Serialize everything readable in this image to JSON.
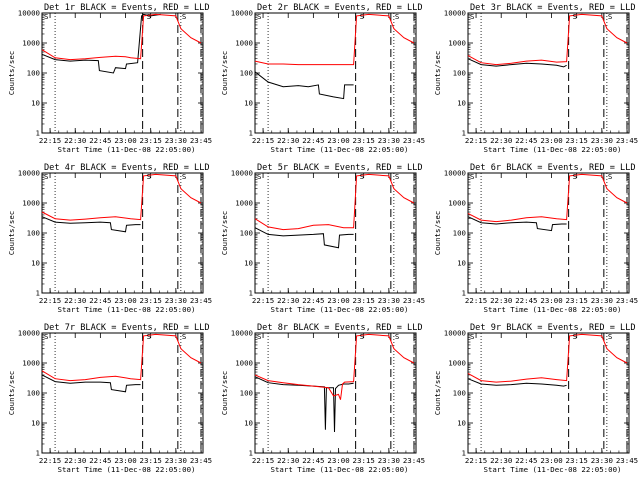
{
  "chart_data": [
    {
      "type": "line",
      "title": "Det 1r BLACK = Events, RED = LLD",
      "xlabel": "Start Time (11-Dec-08 22:05:00)",
      "ylabel": "Counts/sec",
      "yscale": "log",
      "ylim": [
        1,
        10000
      ],
      "xlim": [
        22.17,
        23.77
      ],
      "xticks": [
        "22:15",
        "22:30",
        "22:45",
        "23:00",
        "23:15",
        "23:30",
        "23:45"
      ],
      "yticks": [
        "1",
        "10",
        "100",
        "1000",
        "10000"
      ],
      "markers": [
        "S",
        "S",
        "S"
      ],
      "series": [
        {
          "name": "Events",
          "color": "#000000",
          "x": [
            22.17,
            22.3,
            22.45,
            22.6,
            22.73,
            22.74,
            22.88,
            22.9,
            23.0,
            23.01,
            23.12,
            23.16,
            23.18,
            23.25,
            23.35
          ],
          "y": [
            420,
            280,
            250,
            270,
            260,
            120,
            100,
            150,
            140,
            200,
            220,
            8000,
            9000,
            8000,
            9000
          ]
        },
        {
          "name": "LLD",
          "color": "#ff0000",
          "x": [
            22.17,
            22.3,
            22.45,
            22.6,
            22.75,
            22.9,
            23.0,
            23.05,
            23.15,
            23.18,
            23.3,
            23.5,
            23.55,
            23.65,
            23.75
          ],
          "y": [
            600,
            320,
            280,
            300,
            330,
            360,
            350,
            320,
            300,
            8000,
            9000,
            8000,
            3000,
            1500,
            1000
          ]
        }
      ],
      "vlines_dotted": [
        22.3,
        23.55
      ],
      "vlines_dashed": [
        23.17,
        23.52,
        23.75
      ]
    },
    {
      "type": "line",
      "title": "Det 2r BLACK = Events, RED = LLD",
      "xlabel": "Start Time (11-Dec-08 22:05:00)",
      "ylabel": "Counts/sec",
      "yscale": "log",
      "ylim": [
        1,
        10000
      ],
      "xlim": [
        22.17,
        23.77
      ],
      "xticks": [
        "22:15",
        "22:30",
        "22:45",
        "23:00",
        "23:15",
        "23:30",
        "23:45"
      ],
      "yticks": [
        "1",
        "10",
        "100",
        "1000",
        "10000"
      ],
      "markers": [
        "S",
        "S",
        "S"
      ],
      "series": [
        {
          "name": "Events",
          "color": "#000000",
          "x": [
            22.17,
            22.3,
            22.45,
            22.6,
            22.7,
            22.8,
            22.81,
            22.95,
            23.05,
            23.06,
            23.15
          ],
          "y": [
            110,
            50,
            35,
            38,
            35,
            40,
            20,
            16,
            14,
            40,
            40
          ]
        },
        {
          "name": "LLD",
          "color": "#ff0000",
          "x": [
            22.17,
            22.3,
            22.45,
            22.6,
            22.75,
            22.9,
            23.0,
            23.15,
            23.18,
            23.3,
            23.5,
            23.55,
            23.65,
            23.75
          ],
          "y": [
            250,
            200,
            200,
            190,
            190,
            190,
            190,
            190,
            8000,
            9000,
            8000,
            3000,
            1500,
            1000
          ]
        }
      ],
      "vlines_dotted": [
        22.3,
        23.55
      ],
      "vlines_dashed": [
        23.17,
        23.52,
        23.75
      ]
    },
    {
      "type": "line",
      "title": "Det 3r BLACK = Events, RED = LLD",
      "xlabel": "Start Time (11-Dec-08 22:05:00)",
      "ylabel": "Counts/sec",
      "yscale": "log",
      "ylim": [
        1,
        10000
      ],
      "xlim": [
        22.17,
        23.77
      ],
      "xticks": [
        "22:15",
        "22:30",
        "22:45",
        "23:00",
        "23:15",
        "23:30",
        "23:45"
      ],
      "yticks": [
        "1",
        "10",
        "100",
        "1000",
        "10000"
      ],
      "markers": [
        "S",
        "S",
        "S"
      ],
      "series": [
        {
          "name": "Events",
          "color": "#000000",
          "x": [
            22.17,
            22.3,
            22.45,
            22.6,
            22.75,
            22.9,
            23.05,
            23.12,
            23.15
          ],
          "y": [
            300,
            190,
            170,
            190,
            210,
            200,
            180,
            160,
            180
          ]
        },
        {
          "name": "LLD",
          "color": "#ff0000",
          "x": [
            22.17,
            22.3,
            22.45,
            22.6,
            22.75,
            22.9,
            23.05,
            23.15,
            23.18,
            23.3,
            23.5,
            23.55,
            23.65,
            23.75
          ],
          "y": [
            380,
            220,
            190,
            210,
            250,
            270,
            230,
            240,
            8000,
            9000,
            8000,
            3000,
            1500,
            1000
          ]
        }
      ],
      "vlines_dotted": [
        22.3,
        23.55
      ],
      "vlines_dashed": [
        23.17,
        23.52,
        23.75
      ]
    },
    {
      "type": "line",
      "title": "Det 4r BLACK = Events, RED = LLD",
      "xlabel": "Start Time (11-Dec-08 22:05:00)",
      "ylabel": "Counts/sec",
      "yscale": "log",
      "ylim": [
        1,
        10000
      ],
      "xlim": [
        22.17,
        23.77
      ],
      "xticks": [
        "22:15",
        "22:30",
        "22:45",
        "23:00",
        "23:15",
        "23:30",
        "23:45"
      ],
      "yticks": [
        "1",
        "10",
        "100",
        "1000",
        "10000"
      ],
      "markers": [
        "S",
        "S",
        "S"
      ],
      "series": [
        {
          "name": "Events",
          "color": "#000000",
          "x": [
            22.17,
            22.3,
            22.45,
            22.6,
            22.75,
            22.85,
            22.86,
            23.0,
            23.01,
            23.1,
            23.15
          ],
          "y": [
            350,
            230,
            210,
            220,
            230,
            220,
            130,
            110,
            180,
            190,
            190
          ]
        },
        {
          "name": "LLD",
          "color": "#ff0000",
          "x": [
            22.17,
            22.3,
            22.45,
            22.6,
            22.75,
            22.9,
            23.05,
            23.15,
            23.18,
            23.3,
            23.5,
            23.55,
            23.65,
            23.75
          ],
          "y": [
            500,
            300,
            270,
            290,
            320,
            350,
            300,
            280,
            8000,
            9000,
            8000,
            3000,
            1500,
            1000
          ]
        }
      ],
      "vlines_dotted": [
        22.3,
        23.55
      ],
      "vlines_dashed": [
        23.17,
        23.52,
        23.75
      ]
    },
    {
      "type": "line",
      "title": "Det 5r BLACK = Events, RED = LLD",
      "xlabel": "Start Time (11-Dec-08 22:05:00)",
      "ylabel": "Counts/sec",
      "yscale": "log",
      "ylim": [
        1,
        10000
      ],
      "xlim": [
        22.17,
        23.77
      ],
      "xticks": [
        "22:15",
        "22:30",
        "22:45",
        "23:00",
        "23:15",
        "23:30",
        "23:45"
      ],
      "yticks": [
        "1",
        "10",
        "100",
        "1000",
        "10000"
      ],
      "markers": [
        "S",
        "S",
        "S"
      ],
      "series": [
        {
          "name": "Events",
          "color": "#000000",
          "x": [
            22.17,
            22.3,
            22.45,
            22.6,
            22.75,
            22.85,
            22.86,
            23.0,
            23.01,
            23.1,
            23.15
          ],
          "y": [
            150,
            90,
            80,
            85,
            90,
            95,
            40,
            32,
            85,
            90,
            90
          ]
        },
        {
          "name": "LLD",
          "color": "#ff0000",
          "x": [
            22.17,
            22.3,
            22.45,
            22.6,
            22.75,
            22.9,
            23.05,
            23.15,
            23.18,
            23.3,
            23.5,
            23.55,
            23.65,
            23.75
          ],
          "y": [
            300,
            160,
            130,
            140,
            180,
            190,
            150,
            150,
            8000,
            9000,
            8000,
            3000,
            1500,
            1000
          ]
        }
      ],
      "vlines_dotted": [
        22.3,
        23.55
      ],
      "vlines_dashed": [
        23.17,
        23.52,
        23.75
      ]
    },
    {
      "type": "line",
      "title": "Det 6r BLACK = Events, RED = LLD",
      "xlabel": "Start Time (11-Dec-08 22:05:00)",
      "ylabel": "Counts/sec",
      "yscale": "log",
      "ylim": [
        1,
        10000
      ],
      "xlim": [
        22.17,
        23.77
      ],
      "xticks": [
        "22:15",
        "22:30",
        "22:45",
        "23:00",
        "23:15",
        "23:30",
        "23:45"
      ],
      "yticks": [
        "1",
        "10",
        "100",
        "1000",
        "10000"
      ],
      "markers": [
        "S",
        "S",
        "S"
      ],
      "series": [
        {
          "name": "Events",
          "color": "#000000",
          "x": [
            22.17,
            22.3,
            22.45,
            22.6,
            22.75,
            22.85,
            22.86,
            23.0,
            23.01,
            23.1,
            23.15
          ],
          "y": [
            350,
            220,
            200,
            220,
            230,
            220,
            140,
            120,
            190,
            200,
            200
          ]
        },
        {
          "name": "LLD",
          "color": "#ff0000",
          "x": [
            22.17,
            22.3,
            22.45,
            22.6,
            22.75,
            22.9,
            23.05,
            23.15,
            23.18,
            23.3,
            23.5,
            23.55,
            23.65,
            23.75
          ],
          "y": [
            450,
            270,
            240,
            270,
            320,
            350,
            300,
            280,
            8000,
            9000,
            8000,
            3000,
            1500,
            1000
          ]
        }
      ],
      "vlines_dotted": [
        22.3,
        23.55
      ],
      "vlines_dashed": [
        23.17,
        23.52,
        23.75
      ]
    },
    {
      "type": "line",
      "title": "Det 7r BLACK = Events, RED = LLD",
      "xlabel": "Start Time (11-Dec-08 22:05:00)",
      "ylabel": "Counts/sec",
      "yscale": "log",
      "ylim": [
        1,
        10000
      ],
      "xlim": [
        22.17,
        23.77
      ],
      "xticks": [
        "22:15",
        "22:30",
        "22:45",
        "23:00",
        "23:15",
        "23:30",
        "23:45"
      ],
      "yticks": [
        "1",
        "10",
        "100",
        "1000",
        "10000"
      ],
      "markers": [
        "S",
        "S",
        "S"
      ],
      "series": [
        {
          "name": "Events",
          "color": "#000000",
          "x": [
            22.17,
            22.3,
            22.45,
            22.6,
            22.75,
            22.85,
            22.86,
            23.0,
            23.01,
            23.1,
            23.15
          ],
          "y": [
            400,
            240,
            210,
            230,
            230,
            220,
            130,
            110,
            180,
            190,
            190
          ]
        },
        {
          "name": "LLD",
          "color": "#ff0000",
          "x": [
            22.17,
            22.3,
            22.45,
            22.6,
            22.75,
            22.9,
            23.05,
            23.15,
            23.18,
            23.3,
            23.5,
            23.55,
            23.65,
            23.75
          ],
          "y": [
            550,
            300,
            260,
            280,
            330,
            360,
            300,
            280,
            8000,
            9000,
            8000,
            3000,
            1500,
            1000
          ]
        }
      ],
      "vlines_dotted": [
        22.3,
        23.55
      ],
      "vlines_dashed": [
        23.17,
        23.52,
        23.75
      ]
    },
    {
      "type": "line",
      "title": "Det 8r BLACK = Events, RED = LLD",
      "xlabel": "Start Time (11-Dec-08 22:05:00)",
      "ylabel": "Counts/sec",
      "yscale": "log",
      "ylim": [
        1,
        10000
      ],
      "xlim": [
        22.17,
        23.77
      ],
      "xticks": [
        "22:15",
        "22:30",
        "22:45",
        "23:00",
        "23:15",
        "23:30",
        "23:45"
      ],
      "yticks": [
        "1",
        "10",
        "100",
        "1000",
        "10000"
      ],
      "markers": [
        "S",
        "S",
        "S"
      ],
      "series": [
        {
          "name": "Events",
          "color": "#000000",
          "x": [
            22.17,
            22.3,
            22.45,
            22.6,
            22.75,
            22.86,
            22.87,
            22.88,
            22.95,
            22.96,
            22.97,
            23.0,
            23.05,
            23.1,
            23.15
          ],
          "y": [
            350,
            220,
            190,
            180,
            170,
            160,
            6,
            150,
            150,
            5,
            140,
            180,
            200,
            200,
            210
          ]
        },
        {
          "name": "LLD",
          "color": "#ff0000",
          "x": [
            22.17,
            22.3,
            22.45,
            22.6,
            22.75,
            22.9,
            22.95,
            23.0,
            23.02,
            23.04,
            23.06,
            23.15,
            23.18,
            23.3,
            23.5,
            23.55,
            23.65,
            23.75
          ],
          "y": [
            400,
            260,
            220,
            190,
            170,
            150,
            80,
            90,
            60,
            200,
            230,
            240,
            8000,
            9000,
            8000,
            3000,
            1500,
            1000
          ]
        }
      ],
      "vlines_dotted": [
        22.3,
        23.55
      ],
      "vlines_dashed": [
        23.17,
        23.52,
        23.75
      ]
    },
    {
      "type": "line",
      "title": "Det 9r BLACK = Events, RED = LLD",
      "xlabel": "Start Time (11-Dec-08 22:05:00)",
      "ylabel": "Counts/sec",
      "yscale": "log",
      "ylim": [
        1,
        10000
      ],
      "xlim": [
        22.17,
        23.77
      ],
      "xticks": [
        "22:15",
        "22:30",
        "22:45",
        "23:00",
        "23:15",
        "23:30",
        "23:45"
      ],
      "yticks": [
        "1",
        "10",
        "100",
        "1000",
        "10000"
      ],
      "markers": [
        "S",
        "S",
        "S"
      ],
      "series": [
        {
          "name": "Events",
          "color": "#000000",
          "x": [
            22.17,
            22.3,
            22.45,
            22.6,
            22.75,
            22.9,
            23.05,
            23.12,
            23.15
          ],
          "y": [
            300,
            200,
            180,
            190,
            210,
            200,
            180,
            170,
            180
          ]
        },
        {
          "name": "LLD",
          "color": "#ff0000",
          "x": [
            22.17,
            22.3,
            22.45,
            22.6,
            22.75,
            22.9,
            23.05,
            23.15,
            23.18,
            23.3,
            23.5,
            23.55,
            23.65,
            23.75
          ],
          "y": [
            450,
            260,
            230,
            250,
            290,
            320,
            280,
            260,
            8000,
            9000,
            8000,
            3000,
            1500,
            1000
          ]
        }
      ],
      "vlines_dotted": [
        22.3,
        23.55
      ],
      "vlines_dashed": [
        23.17,
        23.52,
        23.75
      ]
    }
  ]
}
